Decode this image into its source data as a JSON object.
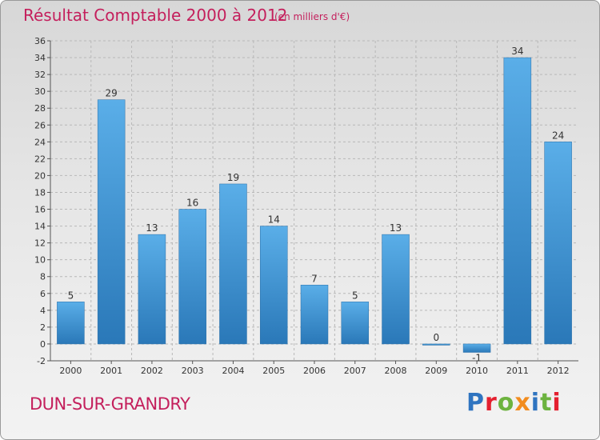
{
  "title": "Résultat Comptable 2000 à 2012",
  "subtitle": "(en milliers d'€)",
  "town": "DUN-SUR-GRANDRY",
  "logo": {
    "text": "Proxiti",
    "colors": [
      "#2f74c0",
      "#e4202f",
      "#6db33f",
      "#f28c1e",
      "#2f74c0",
      "#6db33f",
      "#e4202f"
    ]
  },
  "colors": {
    "bar": "#3f95d9",
    "accent": "#c41f5c",
    "grid": "#b8b8b8",
    "text": "#333333"
  },
  "chart_data": {
    "type": "bar",
    "title": "Résultat Comptable 2000 à 2012",
    "xlabel": "",
    "ylabel": "",
    "ylim": [
      -2,
      36
    ],
    "yticks": [
      -2,
      0,
      2,
      4,
      6,
      8,
      10,
      12,
      14,
      16,
      18,
      20,
      22,
      24,
      26,
      28,
      30,
      32,
      34,
      36
    ],
    "grid": true,
    "categories": [
      "2000",
      "2001",
      "2002",
      "2003",
      "2004",
      "2005",
      "2006",
      "2007",
      "2008",
      "2009",
      "2010",
      "2011",
      "2012"
    ],
    "values": [
      5,
      29,
      13,
      16,
      19,
      14,
      7,
      5,
      13,
      0,
      -1,
      34,
      24
    ]
  }
}
